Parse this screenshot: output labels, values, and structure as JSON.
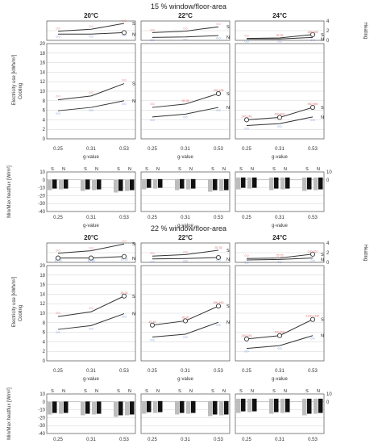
{
  "labels": {
    "heating": "Heating",
    "cooling": "Cooling",
    "electricity": "Electricity use [kWh/m²]",
    "heatflux": "Min/Max heatflux [W/m²]",
    "gvalue": "g-value",
    "s_short": "S",
    "n_short": "N"
  },
  "chart_data": {
    "type": "line",
    "x": [
      0.25,
      0.31,
      0.53
    ],
    "x_tick_labels": [
      "0.25",
      "0.31",
      "0.53"
    ],
    "heating_ticks": [
      0,
      2,
      4
    ],
    "heating_ylim": [
      0,
      4
    ],
    "cooling_ticks": [
      0,
      2,
      4,
      6,
      8,
      10,
      12,
      14,
      16,
      18,
      20
    ],
    "cooling_ylim": [
      0,
      20
    ],
    "heatflux_ticks": [
      -40,
      -30,
      -20,
      -10,
      0,
      10
    ],
    "heatflux_ylim": [
      -40,
      10
    ],
    "heatflux_bar_groups": [
      "S",
      "N"
    ],
    "sections": [
      {
        "title": "15 % window/floor-area",
        "panels": [
          {
            "title": "20°C",
            "heating": {
              "S": [
                1.9,
                2.3,
                3.5
              ],
              "N": [
                1.3,
                1.3,
                1.6
              ],
              "circle": "N",
              "circle_index": 2
            },
            "cooling": {
              "S": [
                8.2,
                9.0,
                11.6
              ],
              "N": [
                5.9,
                6.6,
                8.0
              ],
              "circle": null,
              "circle_index": null
            },
            "heatflux": {
              "S_neg": [
                -13,
                -14,
                -16
              ],
              "S_pos": [
                0.5,
                0.5,
                0.5
              ],
              "N_neg": [
                -12,
                -13,
                -14
              ],
              "N_pos": [
                0.5,
                0.5,
                0.5
              ]
            },
            "annot": {
              "heating_S": [
                "0 0",
                "0 0",
                "0 0"
              ],
              "heating_N": [
                "0 0",
                "0 0",
                "0 0"
              ],
              "cooling_S": [
                "0 0",
                "0 0",
                "0 0"
              ],
              "cooling_N": [
                "0 0",
                "0 0",
                "0 0"
              ]
            }
          },
          {
            "title": "22°C",
            "heating": {
              "S": [
                1.6,
                1.9,
                2.8
              ],
              "N": [
                0.6,
                0.7,
                1.0
              ],
              "circle": null,
              "circle_index": null
            },
            "cooling": {
              "S": [
                6.6,
                7.3,
                9.5
              ],
              "N": [
                4.6,
                5.2,
                6.6
              ],
              "circle": "S",
              "circle_index": 2
            },
            "heatflux": {
              "S_neg": [
                -12,
                -13,
                -15
              ],
              "S_pos": [
                1,
                1,
                1
              ],
              "N_neg": [
                -11,
                -12,
                -14
              ],
              "N_pos": [
                1,
                1,
                1
              ]
            },
            "annot": {
              "heating_S": [
                "0 0",
                "0 0",
                "0 0"
              ],
              "heating_N": [
                "0 0",
                "0 0",
                "0 0"
              ],
              "cooling_S": [
                "0 0",
                "35 35",
                "165 165"
              ],
              "cooling_N": [
                "0 0",
                "0 0",
                "0 0"
              ]
            }
          },
          {
            "title": "24°C",
            "heating": {
              "S": [
                0.4,
                0.5,
                1.2
              ],
              "N": [
                0.3,
                0.3,
                0.6
              ],
              "circle": "S",
              "circle_index": 2
            },
            "cooling": {
              "S": [
                4.0,
                4.5,
                6.6
              ],
              "N": [
                2.8,
                3.2,
                4.6
              ],
              "circle": "S",
              "circle_index": "all"
            },
            "heatflux": {
              "S_neg": [
                -12,
                -13,
                -14
              ],
              "S_pos": [
                3,
                3,
                3
              ],
              "N_neg": [
                -11,
                -12,
                -13
              ],
              "N_pos": [
                3,
                3,
                3
              ]
            },
            "annot": {
              "heating_S": [
                "0 0",
                "35 35",
                "165 165"
              ],
              "heating_N": [
                "0 0",
                "0 0",
                "0 0"
              ],
              "cooling_S": [
                "245 245",
                "490 490",
                "980 980"
              ],
              "cooling_N": [
                "0 0",
                "0 0",
                "0 0"
              ]
            }
          }
        ]
      },
      {
        "title": "22 % window/floor-area",
        "panels": [
          {
            "title": "20°C",
            "heating": {
              "S": [
                1.9,
                2.4,
                3.8
              ],
              "N": [
                0.9,
                0.9,
                1.2
              ],
              "circle": "N",
              "circle_index": "all"
            },
            "cooling": {
              "S": [
                9.3,
                10.3,
                13.6
              ],
              "N": [
                6.6,
                7.4,
                9.9
              ],
              "circle": "S",
              "circle_index": 2
            },
            "heatflux": {
              "S_neg": [
                -16,
                -17,
                -19
              ],
              "S_pos": [
                0.5,
                0.5,
                0.5
              ],
              "N_neg": [
                -15,
                -16,
                -17
              ],
              "N_pos": [
                0.5,
                0.5,
                0.5
              ]
            },
            "annot": {
              "heating_S": [
                "0 0",
                "0 0",
                "0 0"
              ],
              "heating_N": [
                "15 15",
                "15 15",
                "15 15"
              ],
              "cooling_S": [
                "0 0",
                "0 0",
                "35 35"
              ],
              "cooling_N": [
                "0 0",
                "0 0",
                "0 0"
              ]
            }
          },
          {
            "title": "22°C",
            "heating": {
              "S": [
                1.3,
                1.6,
                2.5
              ],
              "N": [
                0.7,
                0.8,
                1.0
              ],
              "circle": "N",
              "circle_index": 2
            },
            "cooling": {
              "S": [
                7.5,
                8.4,
                11.5
              ],
              "N": [
                5.0,
                5.6,
                8.1
              ],
              "circle": "S",
              "circle_index": "all"
            },
            "heatflux": {
              "S_neg": [
                -15,
                -16,
                -18
              ],
              "S_pos": [
                1,
                1,
                1
              ],
              "N_neg": [
                -14,
                -15,
                -17
              ],
              "N_pos": [
                1,
                1,
                1
              ]
            },
            "annot": {
              "heating_S": [
                "0 0",
                "0 0",
                "35 35"
              ],
              "heating_N": [
                "0 0",
                "0 0",
                "0 0"
              ],
              "cooling_S": [
                "45 45",
                "95 95",
                "490 490"
              ],
              "cooling_N": [
                "0 0",
                "0 0",
                "0 0"
              ]
            }
          },
          {
            "title": "24°C",
            "heating": {
              "S": [
                0.8,
                0.9,
                1.7
              ],
              "N": [
                0.5,
                0.6,
                0.9
              ],
              "circle": "S",
              "circle_index": 2
            },
            "cooling": {
              "S": [
                4.6,
                5.3,
                8.7
              ],
              "N": [
                2.6,
                3.2,
                5.3
              ],
              "circle": "S",
              "circle_index": "all"
            },
            "heatflux": {
              "S_neg": [
                -14,
                -15,
                -17
              ],
              "S_pos": [
                4,
                4,
                4
              ],
              "N_neg": [
                -13,
                -14,
                -15
              ],
              "N_pos": [
                4,
                4,
                4
              ]
            },
            "annot": {
              "heating_S": [
                "0 0",
                "25 25",
                "270 270"
              ],
              "heating_N": [
                "0 0",
                "0 0",
                "0 0"
              ],
              "cooling_S": [
                "245 245",
                "490 490",
                "1190 1190"
              ],
              "cooling_N": [
                "0 0",
                "0 0",
                "0 0"
              ]
            }
          }
        ]
      }
    ],
    "colors": {
      "line": "#333333",
      "grid": "#d2d2d2",
      "annot_s": "#e07070",
      "annot_n": "#6f8fd8",
      "bar_dark": "#111111",
      "bar_light": "#bdbdbd"
    }
  }
}
